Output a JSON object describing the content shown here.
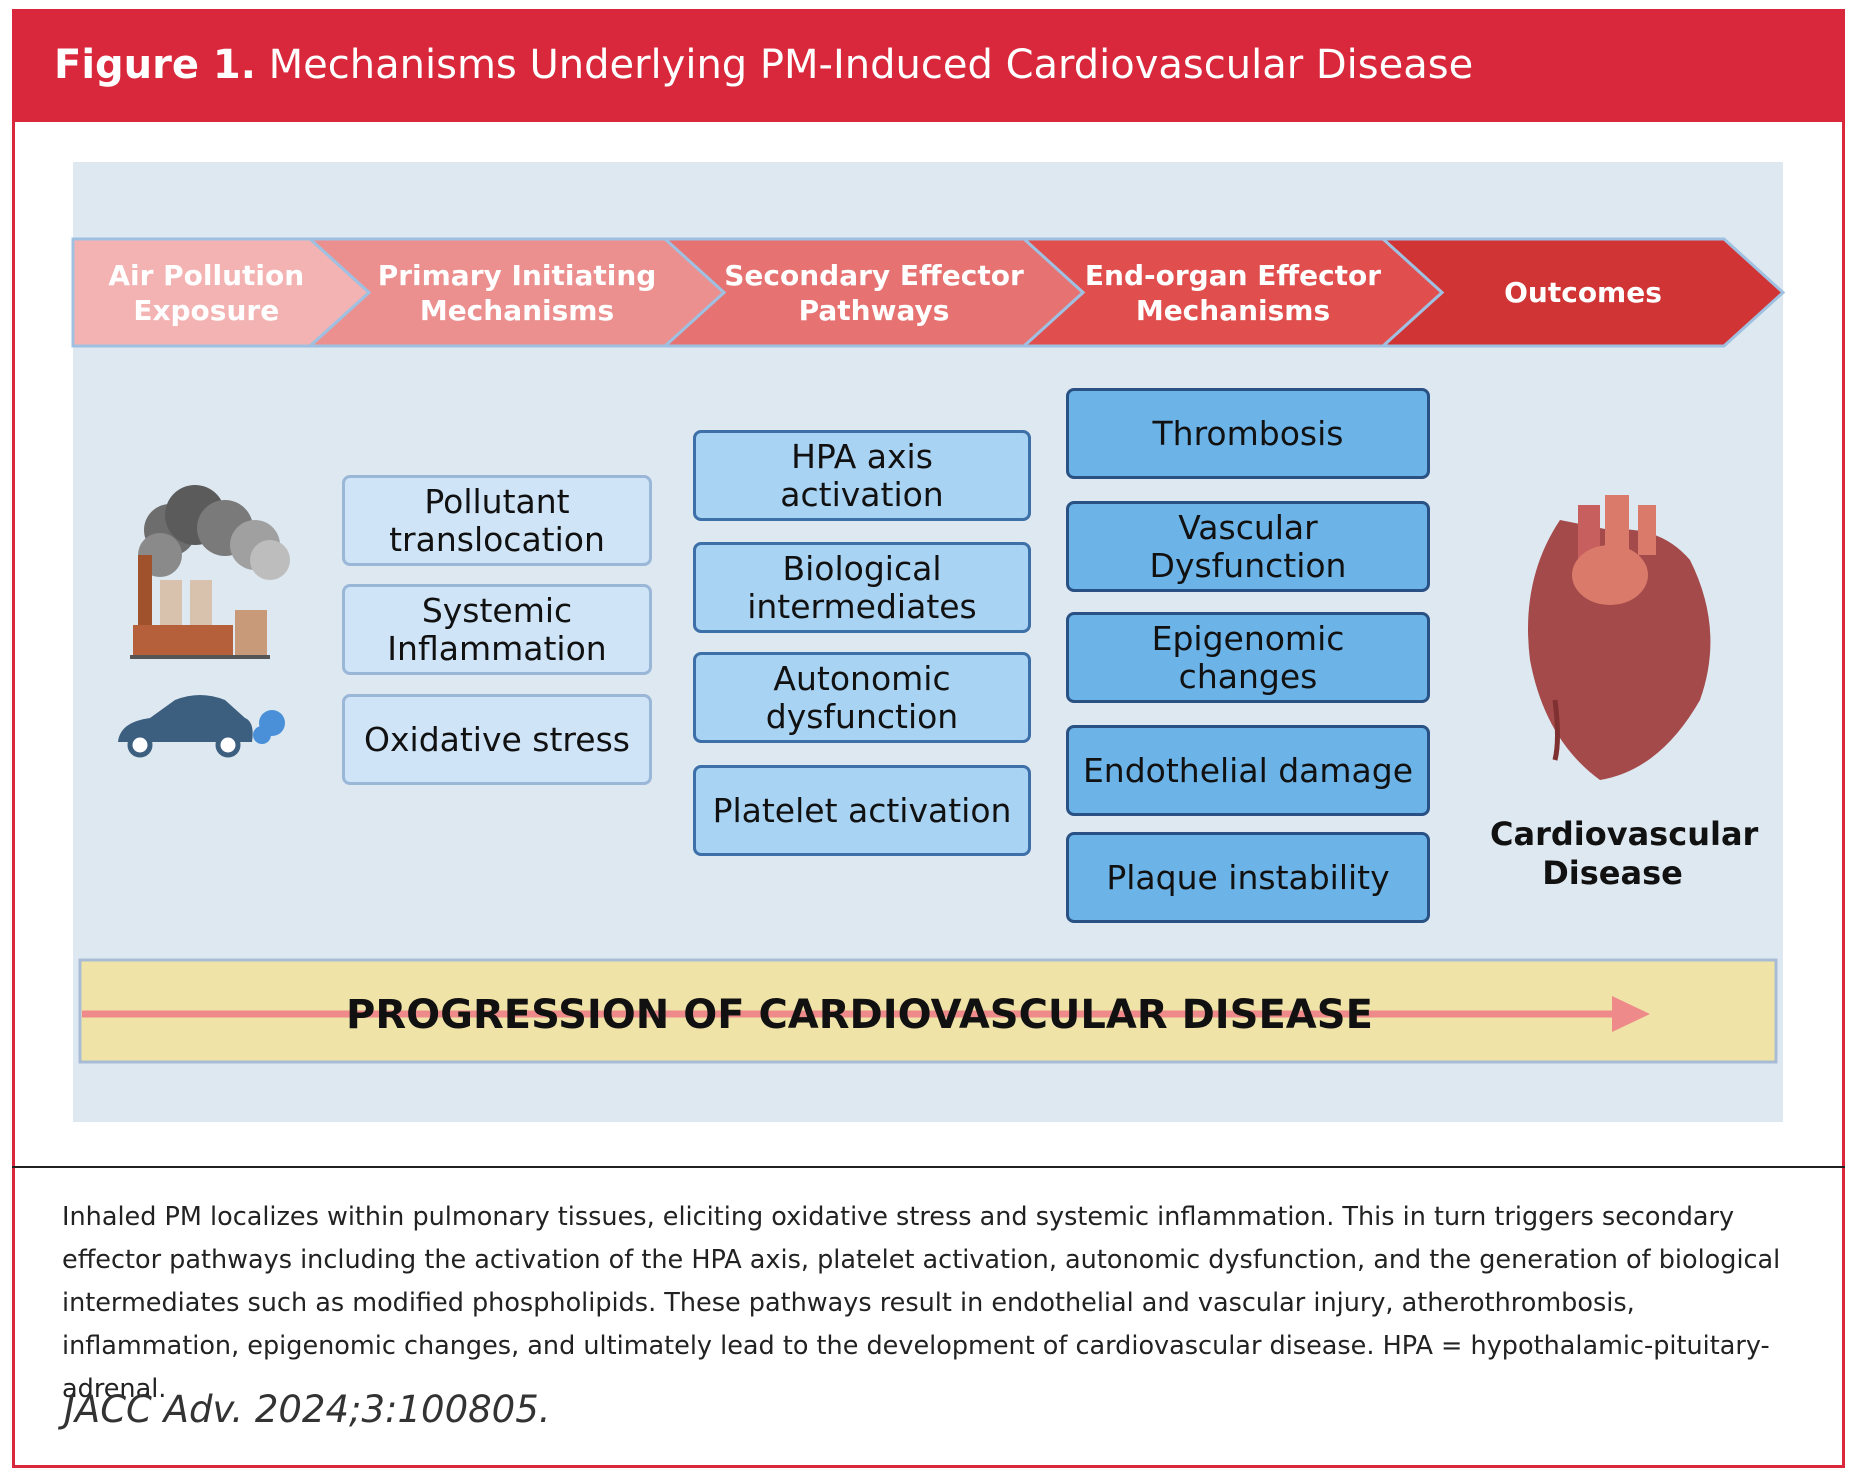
{
  "header": {
    "label": "Figure 1.",
    "title": "Mechanisms Underlying PM-Induced Cardiovascular Disease"
  },
  "stages": [
    "Air Pollution Exposure",
    "Primary Initiating Mechanisms",
    "Secondary Effector Pathways",
    "End-organ Effector Mechanisms",
    "Outcomes"
  ],
  "columns": [
    [
      "Pollutant translocation",
      "Systemic Inflammation",
      "Oxidative stress"
    ],
    [
      "HPA axis activation",
      "Biological intermediates",
      "Autonomic dysfunction",
      "Platelet activation"
    ],
    [
      "Thrombosis",
      "Vascular Dysfunction",
      "Epigenomic changes",
      "Endothelial damage",
      "Plaque instability"
    ]
  ],
  "outcome": "Cardiovascular Disease",
  "progression": "PROGRESSION OF CARDIOVASCULAR DISEASE",
  "caption": "Inhaled PM localizes within pulmonary tissues, eliciting oxidative stress and systemic inflammation. This in turn triggers secondary effector pathways including the activation of the HPA axis, platelet activation, autonomic dysfunction, and the generation of biological intermediates such as modified phospholipids. These pathways result in endothelial and vascular injury, atherothrombosis, inflammation, epigenomic changes, and ultimately lead to the development of cardiovascular disease. HPA = hypothalamic-pituitary-adrenal.",
  "citation": "JACC Adv. 2024;3:100805."
}
